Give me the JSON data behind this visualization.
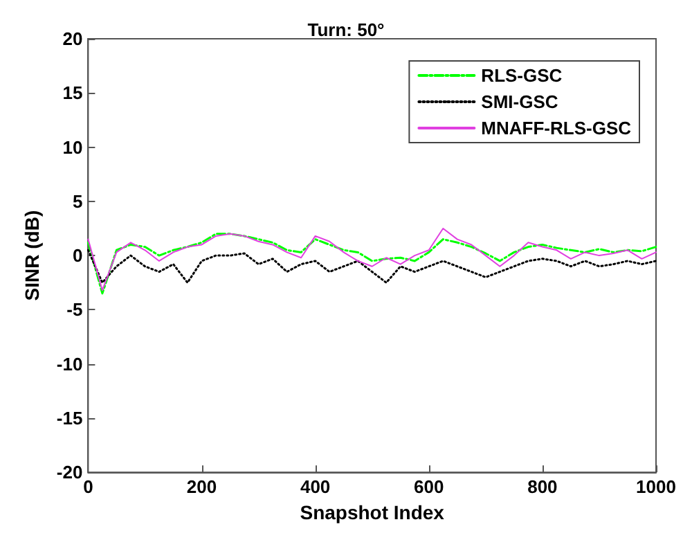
{
  "chart_data": {
    "type": "line",
    "title": "Turn: 50°",
    "xlabel": "Snapshot Index",
    "ylabel": "SINR (dB)",
    "x": [
      0,
      25,
      50,
      75,
      100,
      125,
      150,
      175,
      200,
      225,
      250,
      275,
      300,
      325,
      350,
      375,
      400,
      425,
      450,
      475,
      500,
      525,
      550,
      575,
      600,
      625,
      650,
      675,
      700,
      725,
      750,
      775,
      800,
      825,
      850,
      875,
      900,
      925,
      950,
      975,
      1000
    ],
    "series": [
      {
        "name": "RLS-GSC",
        "color": "#00ff00",
        "line_style": "dashed",
        "values": [
          1.2,
          -3.5,
          0.5,
          1.0,
          0.8,
          0.0,
          0.5,
          0.8,
          1.2,
          2.0,
          2.0,
          1.8,
          1.5,
          1.2,
          0.5,
          0.3,
          1.5,
          1.0,
          0.5,
          0.3,
          -0.5,
          -0.3,
          -0.2,
          -0.5,
          0.3,
          1.5,
          1.2,
          0.8,
          0.2,
          -0.5,
          0.3,
          0.8,
          1.0,
          0.7,
          0.5,
          0.3,
          0.6,
          0.3,
          0.5,
          0.4,
          0.8
        ]
      },
      {
        "name": "SMI-GSC",
        "color": "#000000",
        "line_style": "dotted",
        "values": [
          0.5,
          -2.5,
          -1.0,
          0.0,
          -1.0,
          -1.5,
          -0.8,
          -2.5,
          -0.5,
          0.0,
          0.0,
          0.2,
          -0.8,
          -0.3,
          -1.5,
          -0.8,
          -0.5,
          -1.5,
          -1.0,
          -0.5,
          -1.5,
          -2.5,
          -1.0,
          -1.5,
          -1.0,
          -0.5,
          -1.0,
          -1.5,
          -2.0,
          -1.5,
          -1.0,
          -0.5,
          -0.3,
          -0.5,
          -1.0,
          -0.5,
          -1.0,
          -0.8,
          -0.5,
          -0.8,
          -0.5
        ]
      },
      {
        "name": "MNAFF-RLS-GSC",
        "color": "#e040e0",
        "line_style": "solid",
        "values": [
          1.5,
          -3.2,
          0.3,
          1.2,
          0.5,
          -0.5,
          0.3,
          0.8,
          1.0,
          1.8,
          2.0,
          1.8,
          1.3,
          1.0,
          0.3,
          -0.2,
          1.8,
          1.3,
          0.3,
          -0.5,
          -1.0,
          -0.2,
          -0.8,
          0.0,
          0.5,
          2.5,
          1.5,
          1.0,
          0.0,
          -1.0,
          0.0,
          1.2,
          0.8,
          0.5,
          -0.3,
          0.3,
          0.0,
          0.2,
          0.5,
          -0.3,
          0.3
        ]
      }
    ],
    "xlim": [
      0,
      1000
    ],
    "xticks": [
      0,
      200,
      400,
      600,
      800,
      1000
    ],
    "ylim": [
      -20,
      20
    ],
    "yticks": [
      -20,
      -15,
      -10,
      -5,
      0,
      5,
      10,
      15,
      20
    ],
    "grid": false,
    "legend": "top right",
    "marker": "none"
  }
}
